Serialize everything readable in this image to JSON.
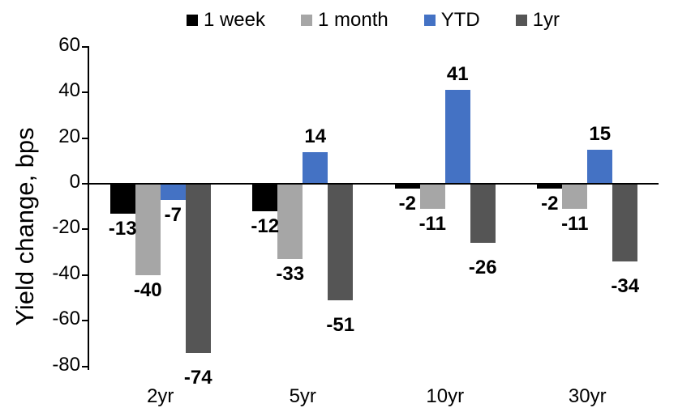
{
  "chart_data": {
    "type": "bar",
    "title": "",
    "ylabel": "Yield change, bps",
    "xlabel": "",
    "categories": [
      "2yr",
      "5yr",
      "10yr",
      "30yr"
    ],
    "series": [
      {
        "name": "1 week",
        "color": "#000000",
        "values": [
          -13,
          -12,
          -2,
          -2
        ]
      },
      {
        "name": "1 month",
        "color": "#A6A6A6",
        "values": [
          -40,
          -33,
          -11,
          -11
        ]
      },
      {
        "name": "YTD",
        "color": "#4472C4",
        "values": [
          -7,
          14,
          41,
          15
        ]
      },
      {
        "name": "1yr",
        "color": "#555555",
        "values": [
          -74,
          -51,
          -26,
          -34
        ]
      }
    ],
    "yticks": [
      60,
      40,
      20,
      0,
      -20,
      -40,
      -60,
      -80
    ],
    "ylim": [
      -80,
      60
    ],
    "grid": false,
    "legend_position": "top",
    "data_labels": true
  }
}
